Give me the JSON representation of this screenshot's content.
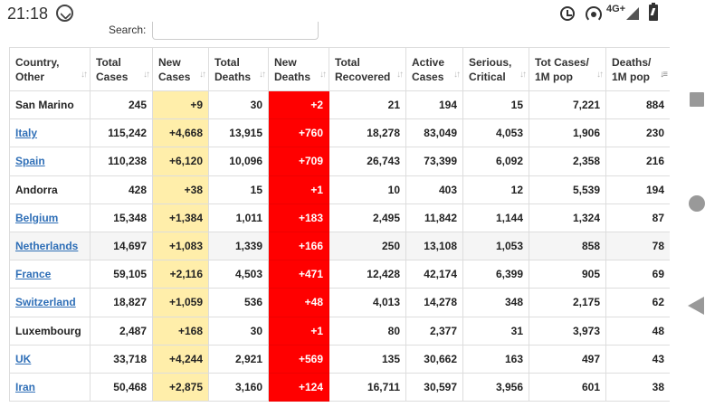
{
  "status_bar": {
    "time": "21:18",
    "network": "4G+",
    "icons": [
      "whatsapp-icon",
      "alarm-icon",
      "hotspot-icon",
      "signal-icon",
      "battery-icon"
    ]
  },
  "search": {
    "label": "Search:",
    "value": ""
  },
  "table": {
    "columns": [
      {
        "line1": "Country,",
        "line2": "Other"
      },
      {
        "line1": "Total",
        "line2": "Cases"
      },
      {
        "line1": "New",
        "line2": "Cases"
      },
      {
        "line1": "Total",
        "line2": "Deaths"
      },
      {
        "line1": "New",
        "line2": "Deaths"
      },
      {
        "line1": "Total",
        "line2": "Recovered"
      },
      {
        "line1": "Active",
        "line2": "Cases"
      },
      {
        "line1": "Serious,",
        "line2": "Critical"
      },
      {
        "line1": "Tot Cases/",
        "line2": "1M pop"
      },
      {
        "line1": "Deaths/",
        "line2": "1M pop"
      }
    ],
    "rows": [
      {
        "country": "San Marino",
        "link": false,
        "total_cases": "245",
        "new_cases": "+9",
        "total_deaths": "30",
        "new_deaths": "+2",
        "total_recovered": "21",
        "active_cases": "194",
        "serious": "15",
        "cases_per_1m": "7,221",
        "deaths_per_1m": "884"
      },
      {
        "country": "Italy",
        "link": true,
        "total_cases": "115,242",
        "new_cases": "+4,668",
        "total_deaths": "13,915",
        "new_deaths": "+760",
        "total_recovered": "18,278",
        "active_cases": "83,049",
        "serious": "4,053",
        "cases_per_1m": "1,906",
        "deaths_per_1m": "230"
      },
      {
        "country": "Spain",
        "link": true,
        "total_cases": "110,238",
        "new_cases": "+6,120",
        "total_deaths": "10,096",
        "new_deaths": "+709",
        "total_recovered": "26,743",
        "active_cases": "73,399",
        "serious": "6,092",
        "cases_per_1m": "2,358",
        "deaths_per_1m": "216"
      },
      {
        "country": "Andorra",
        "link": false,
        "total_cases": "428",
        "new_cases": "+38",
        "total_deaths": "15",
        "new_deaths": "+1",
        "total_recovered": "10",
        "active_cases": "403",
        "serious": "12",
        "cases_per_1m": "5,539",
        "deaths_per_1m": "194"
      },
      {
        "country": "Belgium",
        "link": true,
        "total_cases": "15,348",
        "new_cases": "+1,384",
        "total_deaths": "1,011",
        "new_deaths": "+183",
        "total_recovered": "2,495",
        "active_cases": "11,842",
        "serious": "1,144",
        "cases_per_1m": "1,324",
        "deaths_per_1m": "87"
      },
      {
        "country": "Netherlands",
        "link": true,
        "highlight": true,
        "total_cases": "14,697",
        "new_cases": "+1,083",
        "total_deaths": "1,339",
        "new_deaths": "+166",
        "total_recovered": "250",
        "active_cases": "13,108",
        "serious": "1,053",
        "cases_per_1m": "858",
        "deaths_per_1m": "78"
      },
      {
        "country": "France",
        "link": true,
        "total_cases": "59,105",
        "new_cases": "+2,116",
        "total_deaths": "4,503",
        "new_deaths": "+471",
        "total_recovered": "12,428",
        "active_cases": "42,174",
        "serious": "6,399",
        "cases_per_1m": "905",
        "deaths_per_1m": "69"
      },
      {
        "country": "Switzerland",
        "link": true,
        "total_cases": "18,827",
        "new_cases": "+1,059",
        "total_deaths": "536",
        "new_deaths": "+48",
        "total_recovered": "4,013",
        "active_cases": "14,278",
        "serious": "348",
        "cases_per_1m": "2,175",
        "deaths_per_1m": "62"
      },
      {
        "country": "Luxembourg",
        "link": false,
        "total_cases": "2,487",
        "new_cases": "+168",
        "total_deaths": "30",
        "new_deaths": "+1",
        "total_recovered": "80",
        "active_cases": "2,377",
        "serious": "31",
        "cases_per_1m": "3,973",
        "deaths_per_1m": "48"
      },
      {
        "country": "UK",
        "link": true,
        "total_cases": "33,718",
        "new_cases": "+4,244",
        "total_deaths": "2,921",
        "new_deaths": "+569",
        "total_recovered": "135",
        "active_cases": "30,662",
        "serious": "163",
        "cases_per_1m": "497",
        "deaths_per_1m": "43"
      },
      {
        "country": "Iran",
        "link": true,
        "total_cases": "50,468",
        "new_cases": "+2,875",
        "total_deaths": "3,160",
        "new_deaths": "+124",
        "total_recovered": "16,711",
        "active_cases": "30,597",
        "serious": "3,956",
        "cases_per_1m": "601",
        "deaths_per_1m": "38"
      }
    ]
  },
  "nav_bar": {
    "icons": [
      "recent-apps-icon",
      "home-icon",
      "back-icon"
    ]
  },
  "colors": {
    "new_cases_bg": "#ffeeaa",
    "new_deaths_bg": "#ff0000",
    "link": "#2f6fb7"
  }
}
